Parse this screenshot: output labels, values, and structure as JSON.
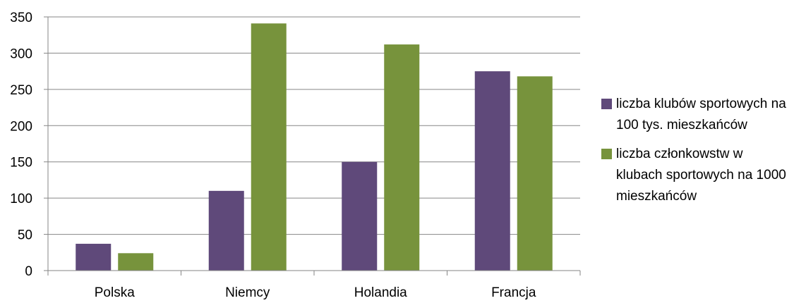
{
  "chart_data": {
    "type": "bar",
    "categories": [
      "Polska",
      "Niemcy",
      "Holandia",
      "Francja"
    ],
    "series": [
      {
        "name": "liczba klubów sportowych na 100 tys. mieszkańców",
        "values": [
          37,
          110,
          150,
          275
        ],
        "color": "#5f497a"
      },
      {
        "name": "liczba członkowstw w klubach sportowych na 1000 mieszkańców",
        "values": [
          24,
          341,
          312,
          268
        ],
        "color": "#77933c"
      }
    ],
    "ylim": [
      0,
      350
    ],
    "yticks": [
      0,
      50,
      100,
      150,
      200,
      250,
      300,
      350
    ],
    "grid": true,
    "legend": "right"
  }
}
